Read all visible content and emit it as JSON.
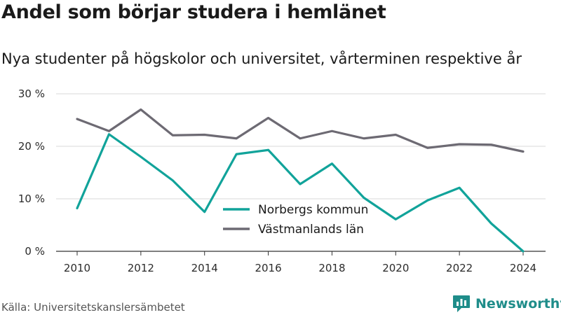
{
  "colors": {
    "norberg": "#11a39a",
    "vastmanland": "#6d6a73",
    "grid": "#d9d9d9",
    "brand": "#1f8d8a"
  },
  "header": {
    "title": "Andel som börjar studera i hemlänet",
    "subtitle": "Nya studenter på högskolor och universitet, vårterminen respektive år"
  },
  "footer": {
    "source": "Källa: Universitetskanslersämbetet",
    "brand_name": "Newsworthy",
    "brand_icon": "newsworthy-logo-icon"
  },
  "chart_data": {
    "type": "line",
    "title": "Andel som börjar studera i hemlänet",
    "subtitle": "Nya studenter på högskolor och universitet, vårterminen respektive år",
    "x": [
      2010,
      2011,
      2012,
      2013,
      2014,
      2015,
      2016,
      2017,
      2018,
      2019,
      2020,
      2021,
      2022,
      2023,
      2024
    ],
    "x_ticks": [
      2010,
      2012,
      2014,
      2016,
      2018,
      2020,
      2022,
      2024
    ],
    "x_tick_labels": [
      "2010",
      "2012",
      "2014",
      "2016",
      "2018",
      "2020",
      "2022",
      "2024"
    ],
    "y_ticks": [
      0,
      10,
      20,
      30
    ],
    "y_tick_labels": [
      "0 %",
      "10 %",
      "20 %",
      "30 %"
    ],
    "ylim": [
      0,
      30
    ],
    "xlim": [
      2010,
      2024
    ],
    "grid": true,
    "legend_position": "center",
    "series": [
      {
        "name": "Norbergs kommun",
        "color": "#11a39a",
        "values": [
          8.2,
          22.3,
          18.0,
          13.5,
          7.5,
          18.5,
          19.3,
          12.8,
          16.7,
          10.2,
          6.1,
          9.7,
          12.1,
          5.3,
          0.0
        ]
      },
      {
        "name": "Västmanlands län",
        "color": "#6d6a73",
        "values": [
          25.2,
          22.9,
          27.0,
          22.1,
          22.2,
          21.5,
          25.4,
          21.5,
          22.9,
          21.5,
          22.2,
          19.7,
          20.4,
          20.3,
          19.0
        ]
      }
    ]
  }
}
